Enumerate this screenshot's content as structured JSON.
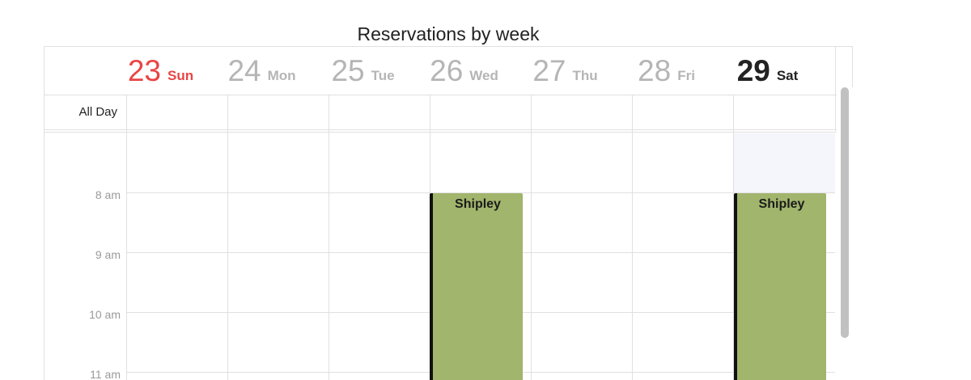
{
  "calendar": {
    "title": "Reservations by week",
    "days": [
      {
        "num": "23",
        "name": "Sun",
        "state": "today"
      },
      {
        "num": "24",
        "name": "Mon",
        "state": "normal"
      },
      {
        "num": "25",
        "name": "Tue",
        "state": "normal"
      },
      {
        "num": "26",
        "name": "Wed",
        "state": "normal"
      },
      {
        "num": "27",
        "name": "Thu",
        "state": "normal"
      },
      {
        "num": "28",
        "name": "Fri",
        "state": "normal"
      },
      {
        "num": "29",
        "name": "Sat",
        "state": "selected"
      }
    ],
    "all_day_label": "All Day",
    "time_labels": [
      "8 am",
      "9 am",
      "10 am",
      "11 am"
    ],
    "events": [
      {
        "title": "Shipley",
        "day": "Wed",
        "start": "8 am"
      },
      {
        "title": "Shipley",
        "day": "Sat",
        "start": "8 am"
      }
    ]
  },
  "colors": {
    "today": "#e84545",
    "event_fill": "#a1b56c",
    "event_border": "#111111",
    "grid": "#e0e0e0",
    "muted_text": "#b5b5b5"
  }
}
